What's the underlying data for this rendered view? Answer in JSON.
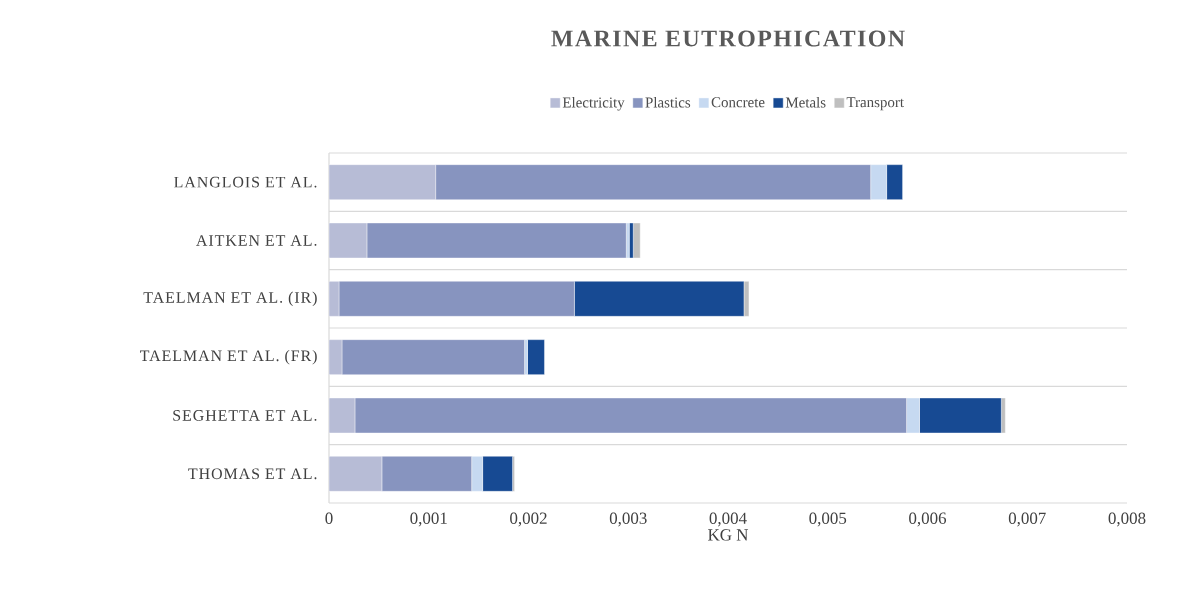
{
  "chart_data": {
    "type": "bar",
    "orientation": "horizontal",
    "stacked": true,
    "title": "MARINE EUTROPHICATION",
    "xlabel": "KG N",
    "categories": [
      "LANGLOIS ET AL.",
      "AITKEN ET AL.",
      "TAELMAN ET AL. (IR)",
      "TAELMAN ET AL. (FR)",
      "SEGHETTA ET AL.",
      "THOMAS ET AL."
    ],
    "series": [
      {
        "name": "Electricity",
        "color": "#b7bcd6",
        "values": [
          0.00107,
          0.00038,
          0.0001,
          0.00013,
          0.00026,
          0.00053
        ]
      },
      {
        "name": "Plastics",
        "color": "#8794bf",
        "values": [
          0.00436,
          0.0026,
          0.00236,
          0.00183,
          0.00553,
          0.0009
        ]
      },
      {
        "name": "Concrete",
        "color": "#c6d9f1",
        "values": [
          0.00016,
          3e-05,
          0.0,
          3e-05,
          0.00013,
          0.00011
        ]
      },
      {
        "name": "Metals",
        "color": "#174a93",
        "values": [
          0.00016,
          4e-05,
          0.0017,
          0.00017,
          0.00082,
          0.0003
        ]
      },
      {
        "name": "Transport",
        "color": "#bfbfbf",
        "values": [
          0.0,
          7e-05,
          5e-05,
          0.0,
          4e-05,
          2e-05
        ]
      }
    ],
    "xlim": [
      0,
      0.008
    ],
    "xticks": [
      0,
      {
        "value": 0.001,
        "label": "0,001"
      },
      {
        "value": 0.002,
        "label": "0,002"
      },
      {
        "value": 0.003,
        "label": "0,003"
      },
      {
        "value": 0.004,
        "label": "0,004"
      },
      {
        "value": 0.005,
        "label": "0,005"
      },
      {
        "value": 0.006,
        "label": "0,006"
      },
      {
        "value": 0.007,
        "label": "0,007"
      },
      {
        "value": 0.008,
        "label": "0,008"
      }
    ],
    "grid": "y",
    "legend": "top"
  }
}
